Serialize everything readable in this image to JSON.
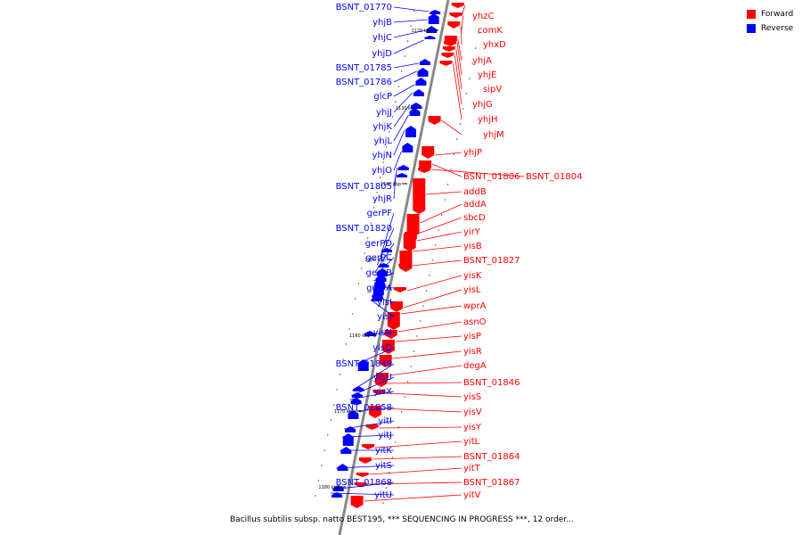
{
  "colors": {
    "forward": "#ff0000",
    "reverse": "#0000ff",
    "backbone": "#888888"
  },
  "legend": [
    {
      "label": "Forward",
      "color": "#ff0000"
    },
    {
      "label": "Reverse",
      "color": "#0000ff"
    }
  ],
  "caption": "Bacillus subtilis subsp. natto BEST195, *** SEQUENCING IN PROGRESS ***, 12 order...",
  "ticks": [
    "1120 kbp",
    "1130 kbp",
    "1140 kbp",
    "1150 kbp",
    "1160 kbp",
    "1170 kbp",
    "1180 kbp"
  ],
  "reverse_genes": [
    "BSNT_01770",
    "yhjB",
    "yhjC",
    "yhjD",
    "BSNT_01785",
    "BSNT_01786",
    "glcP",
    "yhjJ",
    "yhjK",
    "yhjL",
    "yhjN",
    "yhjO",
    "BSNT_01805",
    "yhjR",
    "gerPF",
    "BSNT_01820",
    "gerPD",
    "gerPC",
    "gerPB",
    "gerPA",
    "yisI",
    "yisJ",
    "yisN",
    "yisQ",
    "BSNT_01849",
    "yisU",
    "yisX",
    "BSNT_01858",
    "yitI",
    "yitJ",
    "yitK",
    "yitS",
    "BSNT_01868",
    "yitU"
  ],
  "forward_genes": [
    "yhzC",
    "comK",
    "yhxD",
    "yhjA",
    "yhjE",
    "sipV",
    "yhjG",
    "yhjH",
    "yhjM",
    "yhjP",
    "BSNT_01806",
    "BSNT_01804",
    "addB",
    "addA",
    "sbcD",
    "yirY",
    "yisB",
    "BSNT_01827",
    "yisK",
    "yisL",
    "wprA",
    "asnO",
    "yisP",
    "yisR",
    "degA",
    "BSNT_01846",
    "yisS",
    "yisV",
    "yisY",
    "yitL",
    "BSNT_01864",
    "yitT",
    "BSNT_01867",
    "yitV"
  ]
}
